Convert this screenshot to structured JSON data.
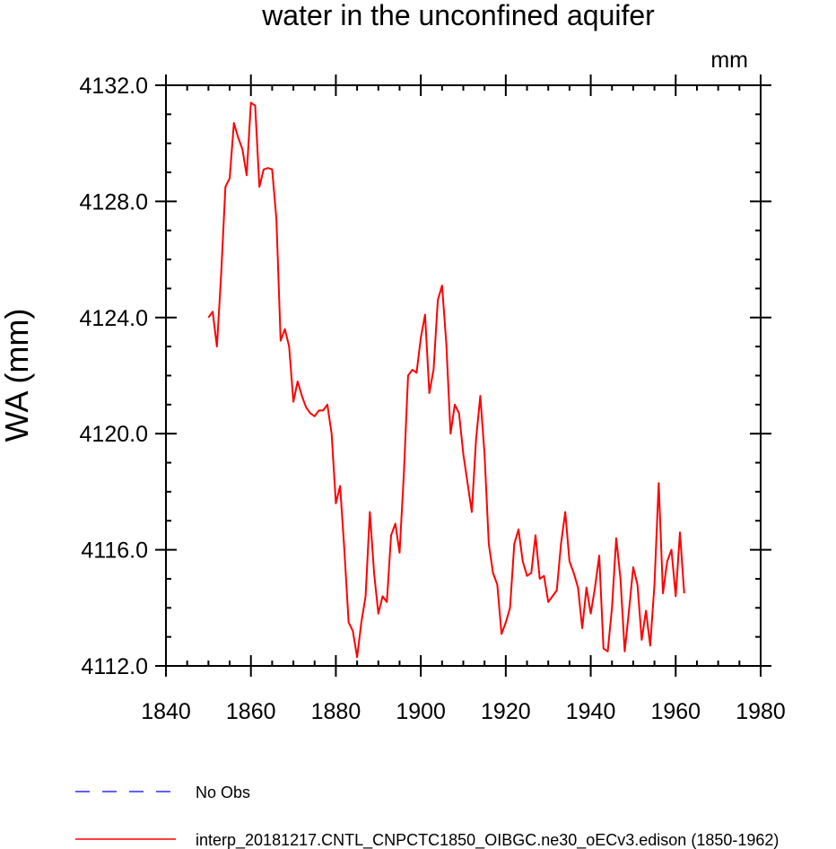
{
  "chart_data": {
    "type": "line",
    "title": "water in the unconfined aquifer",
    "units_label": "mm",
    "xlabel": "",
    "ylabel": "WA  (mm)",
    "xlim": [
      1840,
      1980
    ],
    "ylim": [
      4112,
      4132
    ],
    "x_ticks": [
      1840,
      1860,
      1880,
      1900,
      1920,
      1940,
      1960,
      1980
    ],
    "x_tick_labels": [
      "1840",
      "1860",
      "1880",
      "1900",
      "1920",
      "1940",
      "1960",
      "1980"
    ],
    "y_ticks": [
      4112,
      4116,
      4120,
      4124,
      4128,
      4132
    ],
    "y_tick_labels": [
      "4112.0",
      "4116.0",
      "4120.0",
      "4124.0",
      "4128.0",
      "4132.0"
    ],
    "x_minor_step": 5,
    "y_minor_step": 1,
    "series": [
      {
        "name": "interp_20181217.CNTL_CNPCTC1850_OIBGC.ne30_oECv3.edison (1850-1962)",
        "color": "#ff0000",
        "style": "solid",
        "x": [
          1850,
          1851,
          1852,
          1853,
          1854,
          1855,
          1856,
          1857,
          1858,
          1859,
          1860,
          1861,
          1862,
          1863,
          1864,
          1865,
          1866,
          1867,
          1868,
          1869,
          1870,
          1871,
          1872,
          1873,
          1874,
          1875,
          1876,
          1877,
          1878,
          1879,
          1880,
          1881,
          1882,
          1883,
          1884,
          1885,
          1886,
          1887,
          1888,
          1889,
          1890,
          1891,
          1892,
          1893,
          1894,
          1895,
          1896,
          1897,
          1898,
          1899,
          1900,
          1901,
          1902,
          1903,
          1904,
          1905,
          1906,
          1907,
          1908,
          1909,
          1910,
          1911,
          1912,
          1913,
          1914,
          1915,
          1916,
          1917,
          1918,
          1919,
          1920,
          1921,
          1922,
          1923,
          1924,
          1925,
          1926,
          1927,
          1928,
          1929,
          1930,
          1931,
          1932,
          1933,
          1934,
          1935,
          1936,
          1937,
          1938,
          1939,
          1940,
          1941,
          1942,
          1943,
          1944,
          1945,
          1946,
          1947,
          1948,
          1949,
          1950,
          1951,
          1952,
          1953,
          1954,
          1955,
          1956,
          1957,
          1958,
          1959,
          1960,
          1961,
          1962
        ],
        "values": [
          4124.0,
          4124.2,
          4123.0,
          4125.5,
          4128.5,
          4128.8,
          4130.7,
          4130.2,
          4129.8,
          4128.9,
          4131.4,
          4131.3,
          4128.5,
          4129.1,
          4129.15,
          4129.1,
          4127.4,
          4123.2,
          4123.6,
          4123.0,
          4121.1,
          4121.8,
          4121.3,
          4120.9,
          4120.7,
          4120.6,
          4120.8,
          4120.8,
          4121.0,
          4120.0,
          4117.6,
          4118.2,
          4116.0,
          4113.5,
          4113.2,
          4112.3,
          4113.5,
          4114.4,
          4117.3,
          4115.2,
          4113.8,
          4114.4,
          4114.2,
          4116.5,
          4116.9,
          4115.9,
          4118.6,
          4122.0,
          4122.2,
          4122.1,
          4123.3,
          4124.1,
          4121.4,
          4122.2,
          4124.6,
          4125.1,
          4123.1,
          4120.0,
          4121.0,
          4120.7,
          4119.3,
          4118.3,
          4117.3,
          4119.8,
          4121.3,
          4119.3,
          4116.2,
          4115.2,
          4114.8,
          4113.1,
          4113.5,
          4114.0,
          4116.2,
          4116.7,
          4115.6,
          4115.1,
          4115.2,
          4116.5,
          4115.0,
          4115.1,
          4114.2,
          4114.4,
          4114.6,
          4116.2,
          4117.3,
          4115.6,
          4115.2,
          4114.7,
          4113.3,
          4114.7,
          4113.8,
          4114.7,
          4115.8,
          4112.6,
          4112.5,
          4114.0,
          4116.4,
          4115.0,
          4112.5,
          4113.9,
          4115.4,
          4114.8,
          4112.9,
          4113.9,
          4112.7,
          4114.8,
          4118.3,
          4114.5,
          4115.6,
          4116.0,
          4114.4,
          4116.6,
          4114.5
        ]
      },
      {
        "name": "No Obs",
        "color": "#0000ff",
        "style": "dashed",
        "x": [],
        "values": []
      }
    ],
    "legend": {
      "position": "bottom-left",
      "entries": [
        {
          "label": "No Obs",
          "color": "#0000ff",
          "style": "dashed"
        },
        {
          "label": "interp_20181217.CNTL_CNPCTC1850_OIBGC.ne30_oECv3.edison (1850-1962)",
          "color": "#ff0000",
          "style": "solid"
        }
      ]
    }
  }
}
